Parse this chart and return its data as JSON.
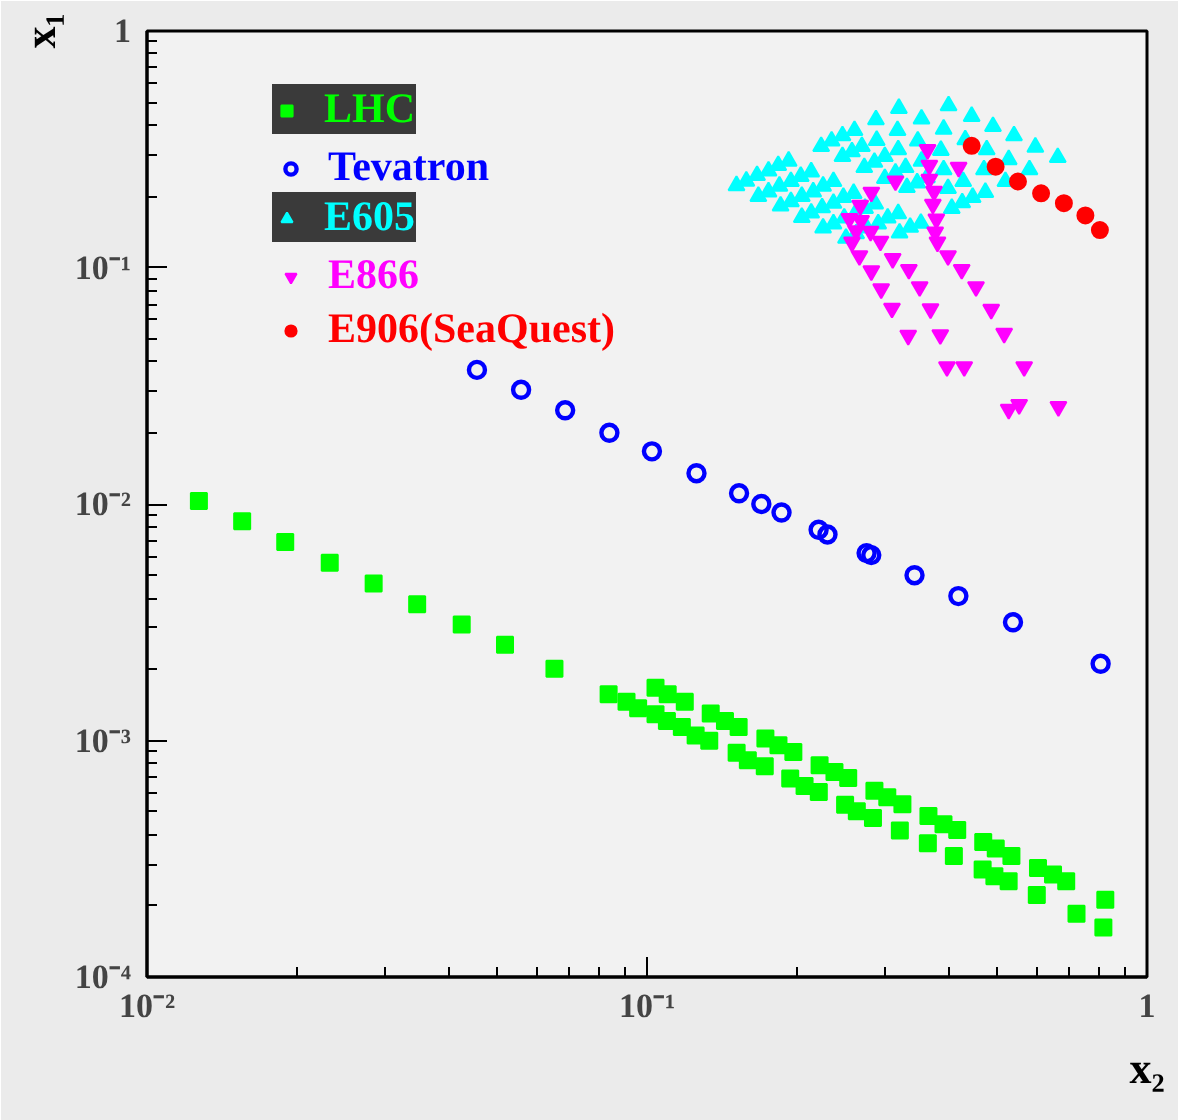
{
  "chart_data": {
    "type": "scatter",
    "xlabel": "x₂",
    "ylabel": "x₁",
    "log": "xy",
    "grid": false,
    "legend": "top left",
    "xlim": [
      0.01,
      1
    ],
    "ylim": [
      0.0001,
      1
    ],
    "xticks": [
      {
        "value": 0.01,
        "label": "10⁻²"
      },
      {
        "value": 0.1,
        "label": "10⁻¹"
      },
      1
    ],
    "yticks": [
      {
        "value": 0.0001,
        "label": "10⁻⁴"
      },
      {
        "value": 0.001,
        "label": "10⁻³"
      },
      {
        "value": 0.01,
        "label": "10⁻²"
      },
      {
        "value": 0.1,
        "label": "10⁻¹"
      },
      1
    ],
    "series": [
      {
        "name": "LHC",
        "color": "#00ff00",
        "marker": "square",
        "x": [
          0.0127,
          0.0155,
          0.0189,
          0.0232,
          0.0284,
          0.0347,
          0.0426,
          0.052,
          0.0653,
          0.0838,
          0.091,
          0.096,
          0.104,
          0.11,
          0.119,
          0.104,
          0.1096,
          0.1174,
          0.1251,
          0.1332,
          0.1341,
          0.1432,
          0.1525,
          0.1511,
          0.1591,
          0.172,
          0.1725,
          0.1832,
          0.1962,
          0.1934,
          0.2066,
          0.2206,
          0.2214,
          0.2371,
          0.2526,
          0.249,
          0.2628,
          0.2831,
          0.285,
          0.3024,
          0.3242,
          0.3204,
          0.3655,
          0.3917,
          0.4173,
          0.3645,
          0.4109,
          0.4704,
          0.4983,
          0.5356,
          0.4691,
          0.4952,
          0.5288,
          0.6053,
          0.6487,
          0.6893,
          0.602,
          0.7228,
          0.8253,
          0.818
        ],
        "values": [
          0.0103,
          0.00845,
          0.0069,
          0.00564,
          0.00461,
          0.00377,
          0.00309,
          0.00254,
          0.00201,
          0.00157,
          0.00146,
          0.00137,
          0.00167,
          0.00157,
          0.00146,
          0.00129,
          0.00121,
          0.00114,
          0.00105,
          0.000998,
          0.0013,
          0.00121,
          0.00114,
          0.000888,
          0.000826,
          0.000779,
          0.00102,
          0.000954,
          0.000893,
          0.00069,
          0.000642,
          0.000605,
          0.000786,
          0.000735,
          0.000694,
          0.000535,
          0.000502,
          0.00047,
          0.000613,
          0.000575,
          0.000538,
          0.000416,
          0.000479,
          0.000443,
          0.000418,
          0.000368,
          0.000325,
          0.000372,
          0.000349,
          0.000325,
          0.000285,
          0.000267,
          0.000254,
          0.000289,
          0.000271,
          0.000254,
          0.000222,
          0.000185,
          0.000212,
          0.000162
        ]
      },
      {
        "name": "Tevatron",
        "color": "#0000ff",
        "marker": "circle_open",
        "x": [
          0.0457,
          0.056,
          0.0686,
          0.0841,
          0.1023,
          0.1256,
          0.1528,
          0.1693,
          0.1858,
          0.2204,
          0.2296,
          0.2749,
          0.2809,
          0.3428,
          0.4195,
          0.5395,
          0.8077
        ],
        "values": [
          0.0369,
          0.0304,
          0.0249,
          0.02,
          0.0167,
          0.0135,
          0.0111,
          0.01,
          0.0092,
          0.00778,
          0.00743,
          0.0062,
          0.00608,
          0.005,
          0.00408,
          0.00316,
          0.00211
        ]
      },
      {
        "name": "E605",
        "color": "#00ffff",
        "marker": "triangle",
        "x": [
          0.151,
          0.158,
          0.166,
          0.175,
          0.183,
          0.192,
          0.167,
          0.175,
          0.184,
          0.194,
          0.203,
          0.213,
          0.185,
          0.194,
          0.204,
          0.215,
          0.225,
          0.236,
          0.204,
          0.213,
          0.224,
          0.236,
          0.247,
          0.259,
          0.225,
          0.236,
          0.248,
          0.261,
          0.273,
          0.286,
          0.25,
          0.262,
          0.275,
          0.29,
          0.303,
          0.318,
          0.223,
          0.234,
          0.246,
          0.246,
          0.257,
          0.269,
          0.272,
          0.285,
          0.299,
          0.299,
          0.314,
          0.329,
          0.331,
          0.347,
          0.363,
          0.407,
          0.427,
          0.448,
          0.32,
          0.336,
          0.353,
          0.319,
          0.401,
          0.446,
          0.26,
          0.287,
          0.317,
          0.354,
          0.392,
          0.492,
          0.288,
          0.318,
          0.348,
          0.387,
          0.433,
          0.478,
          0.542,
          0.529,
          0.598,
          0.663,
          0.582,
          0.354,
          0.392,
          0.429,
          0.472,
          0.521,
          0.475,
          0.4
        ],
        "values": [
          0.222,
          0.232,
          0.245,
          0.256,
          0.27,
          0.282,
          0.2,
          0.209,
          0.221,
          0.231,
          0.243,
          0.254,
          0.182,
          0.19,
          0.2,
          0.209,
          0.221,
          0.231,
          0.163,
          0.17,
          0.179,
          0.187,
          0.198,
          0.206,
          0.147,
          0.153,
          0.162,
          0.169,
          0.178,
          0.186,
          0.133,
          0.139,
          0.147,
          0.153,
          0.162,
          0.169,
          0.325,
          0.343,
          0.361,
          0.295,
          0.309,
          0.325,
          0.265,
          0.279,
          0.295,
          0.238,
          0.251,
          0.265,
          0.218,
          0.228,
          0.24,
          0.178,
          0.188,
          0.198,
          0.14,
          0.148,
          0.154,
          0.471,
          0.483,
          0.436,
          0.38,
          0.422,
          0.38,
          0.425,
          0.385,
          0.395,
          0.345,
          0.315,
          0.343,
          0.313,
          0.347,
          0.315,
          0.361,
          0.286,
          0.323,
          0.292,
          0.259,
          0.282,
          0.259,
          0.231,
          0.259,
          0.231,
          0.208,
          0.216
        ]
      },
      {
        "name": "E866",
        "color": "#ff00ff",
        "x": [
          0.364,
          0.367,
          0.42,
          0.314,
          0.367,
          0.375,
          0.281,
          0.267,
          0.373,
          0.254,
          0.268,
          0.379,
          0.262,
          0.28,
          0.377,
          0.257,
          0.293,
          0.381,
          0.266,
          0.31,
          0.4,
          0.281,
          0.334,
          0.426,
          0.294,
          0.351,
          0.455,
          0.309,
          0.369,
          0.488,
          0.333,
          0.386,
          0.518,
          0.398,
          0.431,
          0.568,
          0.529,
          0.555,
          0.665
        ],
        "values": [
          0.315,
          0.27,
          0.265,
          0.232,
          0.236,
          0.21,
          0.208,
          0.183,
          0.185,
          0.161,
          0.158,
          0.16,
          0.143,
          0.142,
          0.141,
          0.128,
          0.129,
          0.128,
          0.112,
          0.109,
          0.112,
          0.0967,
          0.098,
          0.098,
          0.0812,
          0.0828,
          0.0828,
          0.0672,
          0.0668,
          0.0665,
          0.0516,
          0.0519,
          0.0526,
          0.038,
          0.038,
          0.038,
          0.0251,
          0.0263,
          0.0258
        ]
      },
      {
        "name": "E906(SeaQuest)",
        "color": "#ff0000",
        "marker": "circle",
        "x": [
          0.446,
          0.498,
          0.552,
          0.614,
          0.682,
          0.753,
          0.805
        ],
        "values": [
          0.327,
          0.267,
          0.231,
          0.206,
          0.187,
          0.166,
          0.144
        ]
      }
    ]
  }
}
